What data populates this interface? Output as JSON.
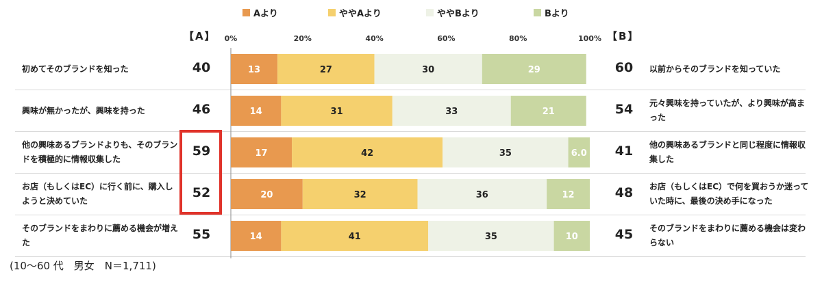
{
  "headers": {
    "left": "【A】",
    "right": "【B】"
  },
  "footnote": "(10〜60 代　男女　N＝1,711)",
  "colors": {
    "a": "#e8994f",
    "somewhat_a": "#f5d06e",
    "somewhat_b": "#eef2e6",
    "b": "#c9d7a2",
    "highlight": "#e0332a"
  },
  "chart_data": {
    "type": "bar",
    "orientation": "horizontal",
    "stacked": true,
    "xlim": [
      0,
      100
    ],
    "x_ticks": [
      "0%",
      "20%",
      "40%",
      "60%",
      "80%",
      "100%"
    ],
    "legend": [
      "Aより",
      "ややAより",
      "ややBより",
      "Bより"
    ],
    "legend_position": "top",
    "grid": false,
    "categories": [
      {
        "a_label": "初めてそのブランドを知った",
        "a_total": 40,
        "b_label": "以前からそのブランドを知っていた",
        "b_total": 60,
        "values": [
          13,
          27,
          30,
          29
        ],
        "value_labels": [
          "13",
          "27",
          "30",
          "29"
        ]
      },
      {
        "a_label": "興味が無かったが、興味を持った",
        "a_total": 46,
        "b_label": "元々興味を持っていたが、より興味が高まった",
        "b_total": 54,
        "values": [
          14,
          31,
          33,
          21
        ],
        "value_labels": [
          "14",
          "31",
          "33",
          "21"
        ]
      },
      {
        "a_label": "他の興味あるブランドよりも、そのブランドを積極的に情報収集した",
        "a_total": 59,
        "b_label": "他の興味あるブランドと同じ程度に情報収集した",
        "b_total": 41,
        "values": [
          17,
          42,
          35,
          6.0
        ],
        "value_labels": [
          "17",
          "42",
          "35",
          "6.0"
        ]
      },
      {
        "a_label": "お店（もしくはEC）に行く前に、購入しようと決めていた",
        "a_total": 52,
        "b_label": "お店（もしくはEC）で何を買おうか迷っていた時に、最後の決め手になった",
        "b_total": 48,
        "values": [
          20,
          32,
          36,
          12
        ],
        "value_labels": [
          "20",
          "32",
          "36",
          "12"
        ]
      },
      {
        "a_label": "そのブランドをまわりに薦める機会が増えた",
        "a_total": 55,
        "b_label": "そのブランドをまわりに薦める機会は変わらない",
        "b_total": 45,
        "values": [
          14,
          41,
          35,
          10
        ],
        "value_labels": [
          "14",
          "41",
          "35",
          "10"
        ]
      }
    ]
  }
}
